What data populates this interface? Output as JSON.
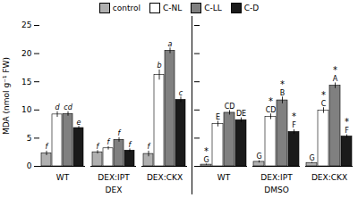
{
  "chart_data": [
    {
      "type": "bar",
      "xlabel": "DEX",
      "ylabel": "MDA (nmol g⁻¹ FW)",
      "categories": [
        "WT",
        "DEX:IPT",
        "DEX:CKX"
      ],
      "ylim": [
        0,
        25
      ],
      "yticks": [
        0,
        5,
        10,
        15,
        20,
        25
      ],
      "legend": "upper left",
      "series": [
        {
          "name": "control",
          "color": "#b0b0b0",
          "values": [
            2.3,
            2.5,
            2.2
          ],
          "errors": [
            0.4,
            0.3,
            0.5
          ],
          "annotations": [
            "f",
            "f",
            "f"
          ]
        },
        {
          "name": "C-NL",
          "color": "#ffffff",
          "values": [
            9.2,
            3.2,
            16.2
          ],
          "errors": [
            0.5,
            0.3,
            0.9
          ],
          "annotations": [
            "d",
            "f",
            "b"
          ]
        },
        {
          "name": "C-LL",
          "color": "#808080",
          "values": [
            9.3,
            4.7,
            20.5
          ],
          "errors": [
            0.4,
            0.4,
            0.5
          ],
          "annotations": [
            "cd",
            "f",
            "a"
          ]
        },
        {
          "name": "C-D",
          "color": "#1a1a1a",
          "values": [
            6.8,
            2.8,
            11.8
          ],
          "errors": [
            0.3,
            0.3,
            0.5
          ],
          "annotations": [
            "e",
            "f",
            "c"
          ]
        }
      ]
    },
    {
      "type": "bar",
      "xlabel": "DMSO",
      "categories": [
        "WT",
        "DEX:IPT",
        "DEX:CKX"
      ],
      "ylim": [
        0,
        25
      ],
      "yticks": [
        0,
        5,
        10,
        15,
        20,
        25
      ],
      "tick_labels": "x",
      "series": [
        {
          "name": "control",
          "color": "#b0b0b0",
          "values": [
            0.3,
            0.8,
            0.6
          ],
          "errors": [
            0.1,
            0.2,
            0.1
          ],
          "annotations": [
            "G",
            "G",
            "G"
          ],
          "stars": [
            "*",
            null,
            null
          ]
        },
        {
          "name": "C-NL",
          "color": "#ffffff",
          "values": [
            7.5,
            8.8,
            9.9
          ],
          "errors": [
            0.5,
            0.5,
            0.5
          ],
          "annotations": [
            "E",
            "CD",
            "C"
          ],
          "stars": [
            null,
            "*",
            "*"
          ]
        },
        {
          "name": "C-LL",
          "color": "#808080",
          "values": [
            9.5,
            11.7,
            14.3
          ],
          "errors": [
            0.4,
            0.6,
            0.5
          ],
          "annotations": [
            "CD",
            "B",
            "A"
          ],
          "stars": [
            null,
            "*",
            "*"
          ]
        },
        {
          "name": "C-D",
          "color": "#1a1a1a",
          "values": [
            8.2,
            6.1,
            5.3
          ],
          "errors": [
            0.4,
            0.4,
            0.3
          ],
          "annotations": [
            "DE",
            "F",
            "F"
          ],
          "stars": [
            null,
            "*",
            "*"
          ]
        }
      ]
    }
  ]
}
